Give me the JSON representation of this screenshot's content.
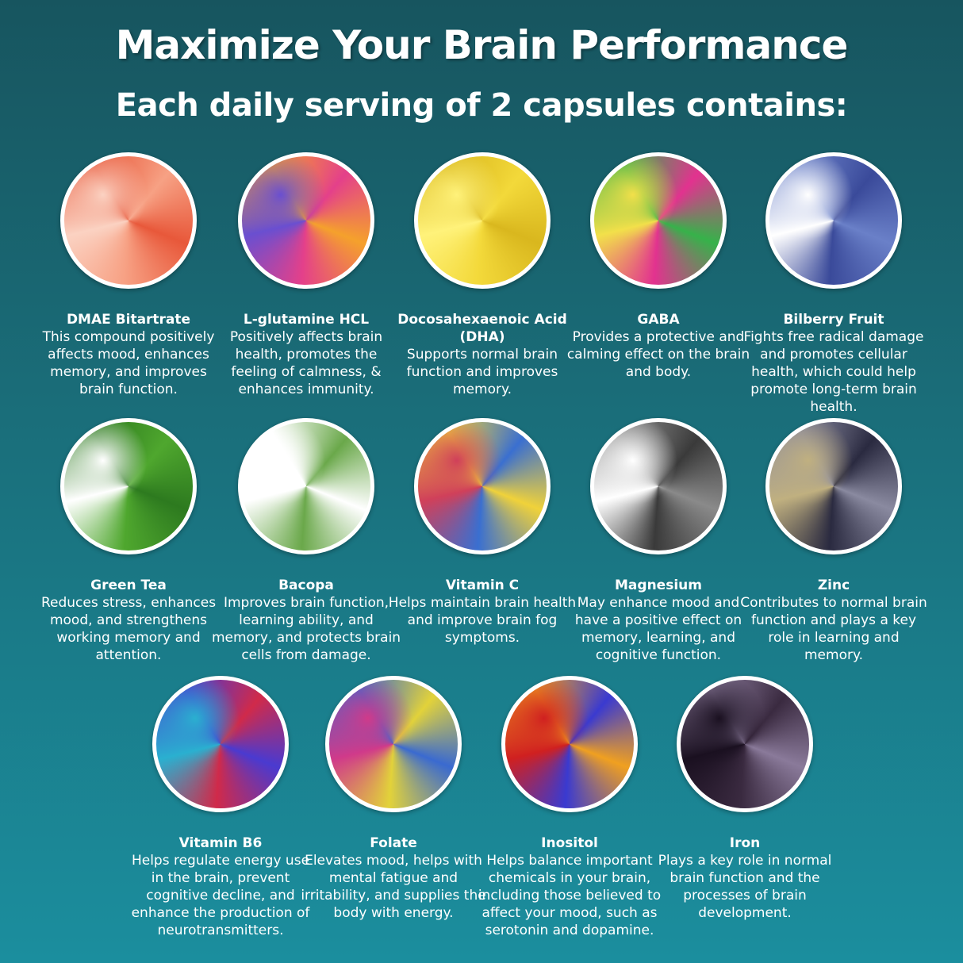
{
  "header": {
    "title": "Maximize Your Brain Performance",
    "subtitle": "Each daily serving of 2 capsules contains:"
  },
  "ingredients": [
    {
      "name": "DMAE Bitartrate",
      "description": "This compound positively affects mood, enhances memory, and improves brain function.",
      "image": "salmon",
      "colors": [
        "#f7a184",
        "#e8583a",
        "#fbd2c2"
      ]
    },
    {
      "name": "L-glutamine HCL",
      "description": "Positively affects brain health, promotes the feeling of calmness, & enhances immunity.",
      "image": "crystal-micrograph-pink",
      "colors": [
        "#e4408a",
        "#f5a12c",
        "#6a4fd0"
      ]
    },
    {
      "name": "Docosahexaenoic Acid (DHA)",
      "description": "Supports normal brain function and improves memory.",
      "image": "oil-droplets",
      "colors": [
        "#f3d93a",
        "#d9b71e",
        "#fff27a"
      ]
    },
    {
      "name": "GABA",
      "description": "Provides a protective and calming effect on the brain and body.",
      "image": "crystal-micrograph-green",
      "colors": [
        "#e2328f",
        "#36b24a",
        "#f2e04a"
      ]
    },
    {
      "name": "Bilberry Fruit",
      "description": "Fights free radical damage and promotes cellular health, which could help promote long-term brain health.",
      "image": "blueberries",
      "colors": [
        "#3a4a9a",
        "#6a80c8",
        "#ffffff"
      ]
    },
    {
      "name": "Green Tea",
      "description": "Reduces stress, enhances mood, and strengthens working memory and attention.",
      "image": "tea-leaves",
      "colors": [
        "#4fa72e",
        "#2d7a1f",
        "#ffffff"
      ]
    },
    {
      "name": "Bacopa",
      "description": "Improves brain function, learning ability, and memory, and protects brain cells from damage.",
      "image": "bacopa-plant",
      "colors": [
        "#6aa84a",
        "#ffffff",
        "#ffffff"
      ]
    },
    {
      "name": "Vitamin C",
      "description": "Helps maintain brain health and improve brain fog symptoms.",
      "image": "crystal-micrograph-rainbow",
      "colors": [
        "#3a6fd0",
        "#f0d23a",
        "#d0405a"
      ]
    },
    {
      "name": "Magnesium",
      "description": "May enhance mood and have a positive effect on memory, learning, and cognitive function.",
      "image": "magnesium-rock",
      "colors": [
        "#3a3a3a",
        "#8a8a8a",
        "#ffffff"
      ]
    },
    {
      "name": "Zinc",
      "description": "Contributes to normal brain function and plays a key role in learning and memory.",
      "image": "zinc-ore",
      "colors": [
        "#2a2a40",
        "#8a8aa0",
        "#c0b080"
      ]
    },
    {
      "name": "Vitamin B6",
      "description": "Helps regulate energy use in the brain, prevent cognitive decline, and enhance the production of neurotransmitters.",
      "image": "crystal-micrograph-b6",
      "colors": [
        "#d02a4a",
        "#4a3ad0",
        "#2ab0d0"
      ]
    },
    {
      "name": "Folate",
      "description": "Elevates mood, helps with mental fatigue and irritability, and supplies the body with energy.",
      "image": "crystal-micrograph-folate",
      "colors": [
        "#e2d23a",
        "#3a6ad0",
        "#d03a8a"
      ]
    },
    {
      "name": "Inositol",
      "description": "Helps balance important chemicals in your brain, including those believed to affect your mood, such as serotonin and dopamine.",
      "image": "crystal-micrograph-inositol",
      "colors": [
        "#3a3ad0",
        "#f0a020",
        "#d02020"
      ]
    },
    {
      "name": "Iron",
      "description": "Plays a key role in normal brain function and the processes of brain development.",
      "image": "iron-texture",
      "colors": [
        "#3a2a40",
        "#8a7a9a",
        "#1a1020"
      ]
    }
  ]
}
